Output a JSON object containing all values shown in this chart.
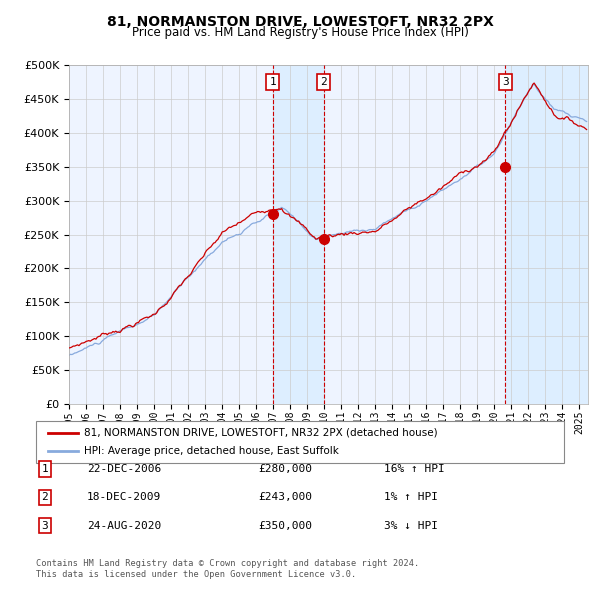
{
  "title": "81, NORMANSTON DRIVE, LOWESTOFT, NR32 2PX",
  "subtitle": "Price paid vs. HM Land Registry's House Price Index (HPI)",
  "legend_line1": "81, NORMANSTON DRIVE, LOWESTOFT, NR32 2PX (detached house)",
  "legend_line2": "HPI: Average price, detached house, East Suffolk",
  "footer1": "Contains HM Land Registry data © Crown copyright and database right 2024.",
  "footer2": "This data is licensed under the Open Government Licence v3.0.",
  "transactions": [
    {
      "num": 1,
      "date": "22-DEC-2006",
      "price": 280000,
      "hpi_rel": "16% ↑ HPI",
      "date_dec": 2006.97
    },
    {
      "num": 2,
      "date": "18-DEC-2009",
      "price": 243000,
      "hpi_rel": "1% ↑ HPI",
      "date_dec": 2009.96
    },
    {
      "num": 3,
      "date": "24-AUG-2020",
      "price": 350000,
      "hpi_rel": "3% ↓ HPI",
      "date_dec": 2020.65
    }
  ],
  "hpi_color": "#88aadd",
  "price_color": "#cc0000",
  "dot_color": "#cc0000",
  "vline_color": "#cc0000",
  "shade_color": "#ddeeff",
  "grid_color": "#cccccc",
  "background_color": "#ffffff",
  "plot_bg_color": "#eef4ff",
  "ylim": [
    0,
    500000
  ],
  "yticks": [
    0,
    50000,
    100000,
    150000,
    200000,
    250000,
    300000,
    350000,
    400000,
    450000,
    500000
  ],
  "xstart": 1995.0,
  "xend": 2025.5
}
